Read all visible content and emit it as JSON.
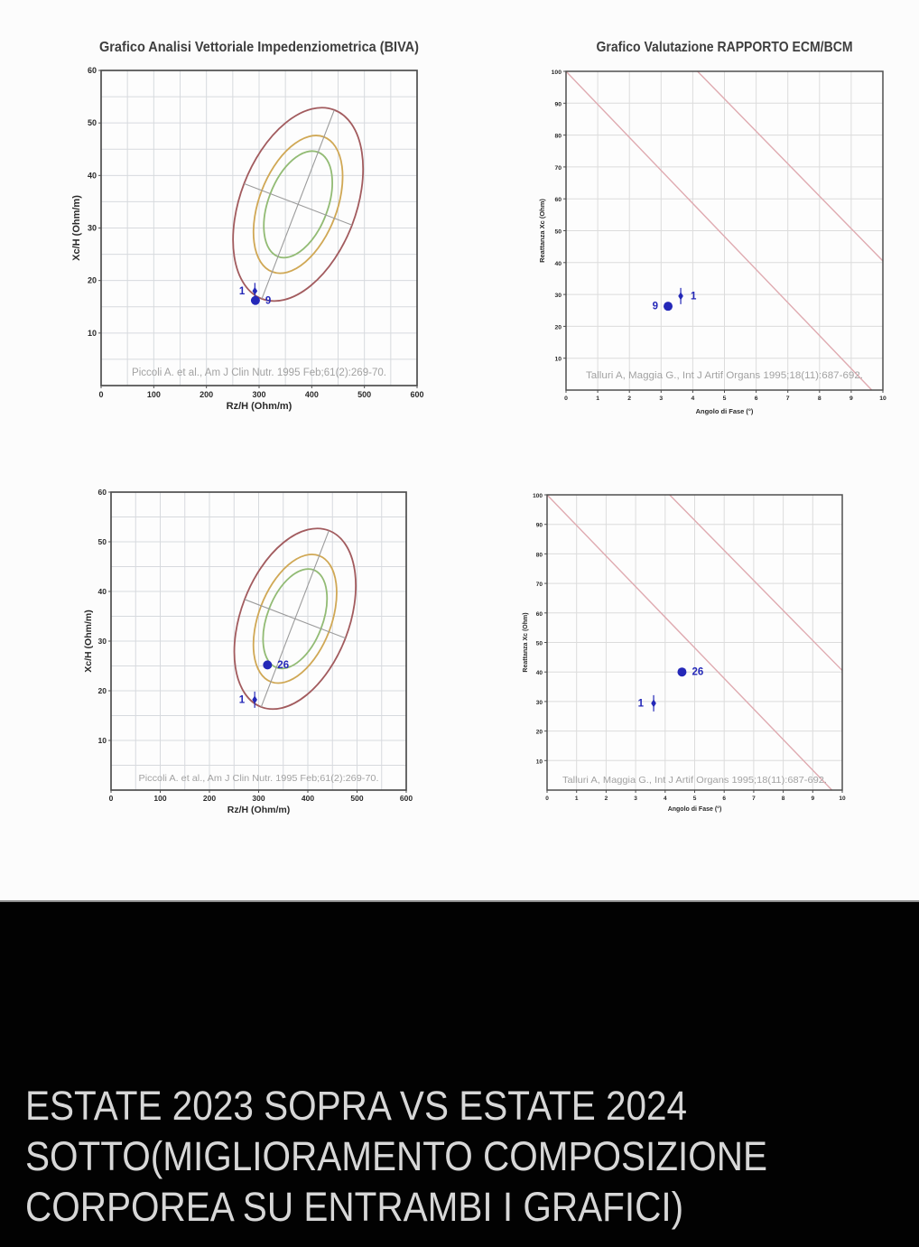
{
  "page": {
    "background": "#fcfcfc"
  },
  "caption": {
    "text": "ESTATE 2023 SOPRA VS ESTATE 2024 SOTTO(MIGLIORAMENTO COMPOSIZIONE CORPOREA SU ENTRAMBI I GRAFICI)",
    "background": "#020202",
    "color": "#d7d7d7",
    "divider_color": "#8e8e8e"
  },
  "style": {
    "frame": "#4e4e4e",
    "tick_color": "#2a2a2a",
    "title_color": "#3e3e3e",
    "citation_color": "#a2a2a2",
    "point_color": "#2428b8",
    "plot_background": "#fdfdfd"
  },
  "chart_data": [
    {
      "id": "biva-estate-2023",
      "type": "scatter",
      "title": "Grafico Analisi Vettoriale Impedenziometrica (BIVA)",
      "xlabel": "Rz/H (Ohm/m)",
      "ylabel": "Xc/H (Ohm/m)",
      "citation": "Piccoli A. et al., Am J Clin Nutr. 1995 Feb;61(2):269-70.",
      "xlim": [
        0,
        600
      ],
      "ylim": [
        0,
        60
      ],
      "xticks": [
        0,
        100,
        200,
        300,
        400,
        500,
        600
      ],
      "yticks": [
        10,
        20,
        30,
        40,
        50,
        60
      ],
      "xgrid_step": 50,
      "ygrid_step": 5,
      "grid_color": "#d7dade",
      "tolerance_ellipses": {
        "center": [
          374,
          34.5
        ],
        "angle_deg": 69,
        "axis_line_color": "#9b9b9b",
        "levels": [
          {
            "level": "95%",
            "color": "#a25b5e",
            "a_frac": 0.32,
            "b_frac": 0.183
          },
          {
            "level": "75%",
            "color": "#d0a855",
            "a_frac": 0.2286,
            "b_frac": 0.123
          },
          {
            "level": "50%",
            "color": "#92bb74",
            "a_frac": 0.177,
            "b_frac": 0.094
          }
        ]
      },
      "points": [
        {
          "label": "1",
          "x": 292,
          "y": 18.0,
          "marker": "diamond",
          "label_side": "left"
        },
        {
          "label": "9",
          "x": 293,
          "y": 16.2,
          "marker": "circle",
          "label_side": "right"
        }
      ]
    },
    {
      "id": "ecm-estate-2023",
      "type": "scatter",
      "title": "Grafico Valutazione RAPPORTO ECM/BCM",
      "xlabel": "Angolo di Fase (°)",
      "ylabel": "Reattanza Xc  (Ohm)",
      "citation": "Talluri A, Maggia G., Int J Artif Organs 1995;18(11):687-692.",
      "xlim": [
        0,
        10
      ],
      "ylim": [
        0,
        100
      ],
      "xticks": [
        0,
        1,
        2,
        3,
        4,
        5,
        6,
        7,
        8,
        9,
        10
      ],
      "yticks": [
        10,
        20,
        30,
        40,
        50,
        60,
        70,
        80,
        90,
        100
      ],
      "xgrid_step": 1,
      "ygrid_step": 10,
      "grid_color": "#dcdcdc",
      "ref_lines": [
        {
          "x1": 0,
          "y1": 100,
          "x2": 9.65,
          "y2": 0,
          "color": "#dfaab0"
        },
        {
          "x1": 4.15,
          "y1": 100,
          "x2": 10,
          "y2": 40.5,
          "color": "#dfaab0"
        }
      ],
      "points": [
        {
          "label": "9",
          "x": 3.22,
          "y": 26.3,
          "marker": "circle",
          "label_side": "left"
        },
        {
          "label": "1",
          "x": 3.62,
          "y": 29.5,
          "marker": "diamond",
          "label_side": "right"
        }
      ]
    },
    {
      "id": "biva-estate-2024",
      "type": "scatter",
      "title": "",
      "xlabel": "Rz/H (Ohm/m)",
      "ylabel": "Xc/H (Ohm/m)",
      "citation": "Piccoli A. et al., Am J Clin Nutr. 1995 Feb;61(2):269-70.",
      "xlim": [
        0,
        600
      ],
      "ylim": [
        0,
        60
      ],
      "xticks": [
        0,
        100,
        200,
        300,
        400,
        500,
        600
      ],
      "yticks": [
        10,
        20,
        30,
        40,
        50,
        60
      ],
      "xgrid_step": 50,
      "ygrid_step": 5,
      "grid_color": "#d7dade",
      "tolerance_ellipses": {
        "center": [
          374,
          34.5
        ],
        "angle_deg": 69,
        "axis_line_color": "#9b9b9b",
        "levels": [
          {
            "level": "95%",
            "color": "#a25b5e",
            "a_frac": 0.32,
            "b_frac": 0.183
          },
          {
            "level": "75%",
            "color": "#d0a855",
            "a_frac": 0.2286,
            "b_frac": 0.123
          },
          {
            "level": "50%",
            "color": "#92bb74",
            "a_frac": 0.177,
            "b_frac": 0.094
          }
        ]
      },
      "points": [
        {
          "label": "1",
          "x": 292,
          "y": 18.2,
          "marker": "diamond",
          "label_side": "left"
        },
        {
          "label": "26",
          "x": 318,
          "y": 25.2,
          "marker": "circle",
          "label_side": "right"
        }
      ]
    },
    {
      "id": "ecm-estate-2024",
      "type": "scatter",
      "title": "",
      "xlabel": "Angolo di Fase (°)",
      "ylabel": "Reattanza Xc  (Ohm)",
      "citation": "Talluri A, Maggia G., Int J Artif Organs 1995;18(11):687-692.",
      "xlim": [
        0,
        10
      ],
      "ylim": [
        0,
        100
      ],
      "xticks": [
        0,
        1,
        2,
        3,
        4,
        5,
        6,
        7,
        8,
        9,
        10
      ],
      "yticks": [
        10,
        20,
        30,
        40,
        50,
        60,
        70,
        80,
        90,
        100
      ],
      "xgrid_step": 1,
      "ygrid_step": 10,
      "grid_color": "#dcdcdc",
      "ref_lines": [
        {
          "x1": 0,
          "y1": 100,
          "x2": 9.65,
          "y2": 0,
          "color": "#dfaab0"
        },
        {
          "x1": 4.15,
          "y1": 100,
          "x2": 10,
          "y2": 40.5,
          "color": "#dfaab0"
        }
      ],
      "points": [
        {
          "label": "1",
          "x": 3.61,
          "y": 29.4,
          "marker": "diamond",
          "label_side": "left"
        },
        {
          "label": "26",
          "x": 4.57,
          "y": 40.0,
          "marker": "circle",
          "label_side": "right"
        }
      ]
    }
  ]
}
